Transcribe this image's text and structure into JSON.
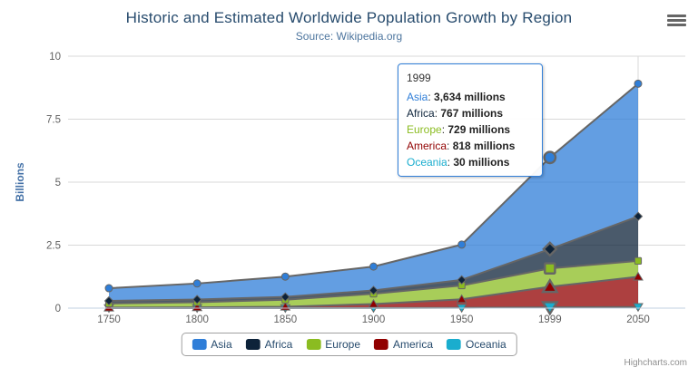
{
  "chart": {
    "title": "Historic and Estimated Worldwide Population Growth by Region",
    "subtitle": "Source: Wikipedia.org",
    "credits": "Highcharts.com"
  },
  "chart_data": {
    "type": "area",
    "stacking": "normal",
    "title": "Historic and Estimated Worldwide Population Growth by Region",
    "subtitle": "Source: Wikipedia.org",
    "categories": [
      "1750",
      "1800",
      "1850",
      "1900",
      "1950",
      "1999",
      "2050"
    ],
    "xlabel": "",
    "ylabel": "Billions",
    "unit": "millions",
    "ylim": [
      0,
      10
    ],
    "yticks": [
      0,
      2.5,
      5,
      7.5,
      10
    ],
    "grid": true,
    "legend_position": "bottom",
    "hover_category": "1999",
    "series": [
      {
        "name": "Asia",
        "color": "#2f7ed8",
        "marker": "circle",
        "values": [
          502,
          635,
          809,
          947,
          1402,
          3634,
          5268
        ]
      },
      {
        "name": "Africa",
        "color": "#0d233a",
        "marker": "diamond",
        "values": [
          106,
          107,
          111,
          133,
          221,
          767,
          1766
        ]
      },
      {
        "name": "Europe",
        "color": "#8bbc21",
        "marker": "square",
        "values": [
          163,
          203,
          276,
          408,
          547,
          729,
          628
        ]
      },
      {
        "name": "America",
        "color": "#910000",
        "marker": "triangle-up",
        "values": [
          18,
          31,
          54,
          156,
          339,
          818,
          1201
        ]
      },
      {
        "name": "Oceania",
        "color": "#1aadce",
        "marker": "triangle-down",
        "values": [
          2,
          2,
          2,
          6,
          13,
          30,
          46
        ]
      }
    ]
  },
  "tooltip": {
    "header": "1999",
    "rows": [
      {
        "name": "Asia",
        "value": "3,634 millions",
        "color": "#2f7ed8"
      },
      {
        "name": "Africa",
        "value": "767 millions",
        "color": "#0d233a"
      },
      {
        "name": "Europe",
        "value": "729 millions",
        "color": "#8bbc21"
      },
      {
        "name": "America",
        "value": "818 millions",
        "color": "#910000"
      },
      {
        "name": "Oceania",
        "value": "30 millions",
        "color": "#1aadce"
      }
    ]
  },
  "legend": {
    "items": [
      {
        "label": "Asia",
        "color": "#2f7ed8"
      },
      {
        "label": "Africa",
        "color": "#0d233a"
      },
      {
        "label": "Europe",
        "color": "#8bbc21"
      },
      {
        "label": "America",
        "color": "#910000"
      },
      {
        "label": "Oceania",
        "color": "#1aadce"
      }
    ]
  },
  "theme": {
    "title_color": "#274b6d",
    "subtitle_color": "#4d759e",
    "axis_label_color": "#606060",
    "yaxis_title_color": "#4572a7",
    "grid_color": "#d8d8d8",
    "axis_line_color": "#c0d0e0",
    "series_line_color": "#666666",
    "legend_text_color": "#274b6d",
    "credits_color": "#909090"
  }
}
